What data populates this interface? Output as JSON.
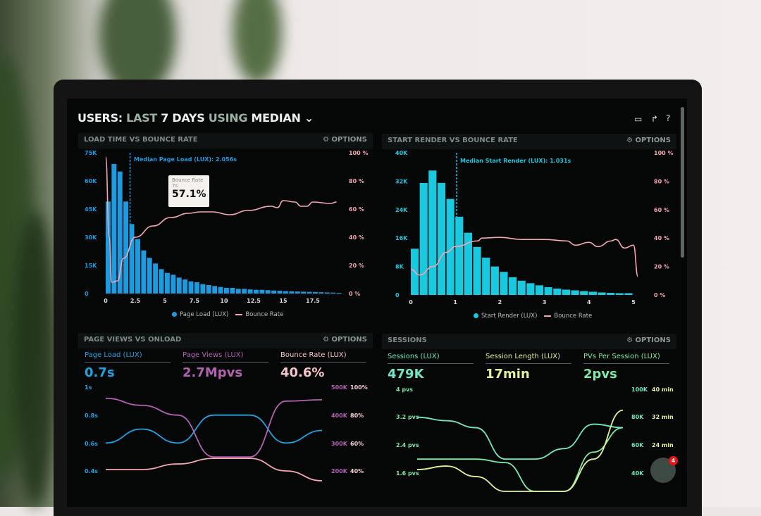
{
  "header": {
    "users": "USERS:",
    "last": "LAST",
    "days": "7 DAYS",
    "using": "USING",
    "median": "MEDIAN",
    "chevron": "chevron-down-icon",
    "icons": [
      "monitor-icon",
      "share-icon",
      "help-icon"
    ]
  },
  "panels": [
    {
      "title": "LOAD TIME VS BOUNCE RATE",
      "options": "OPTIONS"
    },
    {
      "title": "START RENDER VS BOUNCE RATE",
      "options": "OPTIONS"
    },
    {
      "title": "PAGE VIEWS VS ONLOAD",
      "options": "OPTIONS"
    },
    {
      "title": "SESSIONS",
      "options": "OPTIONS"
    }
  ],
  "tooltip": {
    "label": "Bounce Rate",
    "x": "7s",
    "value": "57.1%"
  },
  "metrics1": [
    {
      "label": "Page Load (LUX)",
      "value": "0.7s",
      "color": "#1fa3e0"
    },
    {
      "label": "Page Views (LUX)",
      "value": "2.7Mpvs",
      "color": "#b262b0"
    },
    {
      "label": "Bounce Rate (LUX)",
      "value": "40.6%",
      "color": "#f6c6cc"
    }
  ],
  "metrics2": [
    {
      "label": "Sessions (LUX)",
      "value": "479K",
      "color": "#72e6c6"
    },
    {
      "label": "Session Length (LUX)",
      "value": "17min",
      "color": "#e4ef9a"
    },
    {
      "label": "PVs Per Session (LUX)",
      "value": "2pvs",
      "color": "#7ee8a6"
    }
  ],
  "chat": {
    "badge": "4"
  },
  "chart_data": [
    {
      "type": "bar",
      "title": "LOAD TIME VS BOUNCE RATE",
      "annotation": "Median Page Load (LUX): 2.056s",
      "median": 2.056,
      "xticks": [
        "0",
        "2.5",
        "5",
        "7.5",
        "10",
        "12.5",
        "15",
        "17.5"
      ],
      "yticks_left": [
        "0",
        "15K",
        "30K",
        "45K",
        "60K",
        "75K"
      ],
      "yticks_right": [
        "0 %",
        "20 %",
        "40 %",
        "60 %",
        "80 %",
        "100 %"
      ],
      "xlim": [
        0,
        20
      ],
      "ylim": [
        0,
        75000
      ],
      "y2lim": [
        0,
        100
      ],
      "bar_width": 0.5,
      "legend": [
        "Page Load (LUX)",
        "Bounce Rate"
      ],
      "colors": {
        "bar": "#1c9be0",
        "line": "#f2a7b3"
      },
      "bars": [
        49000,
        69000,
        65000,
        49000,
        37000,
        29000,
        23000,
        19000,
        16000,
        13000,
        11000,
        10000,
        8500,
        7500,
        6500,
        6000,
        5000,
        4500,
        4000,
        3500,
        3000,
        3000,
        2500,
        2500,
        2200,
        2000,
        2000,
        1800,
        1600,
        1500,
        1300,
        1200,
        1100,
        1000,
        900,
        800,
        700,
        600,
        500,
        400
      ],
      "line": [
        [
          0,
          97
        ],
        [
          0.3,
          40
        ],
        [
          0.5,
          8
        ],
        [
          1,
          9
        ],
        [
          1.5,
          25
        ],
        [
          2.5,
          40
        ],
        [
          4,
          48
        ],
        [
          5.5,
          54
        ],
        [
          7,
          57
        ],
        [
          8,
          58
        ],
        [
          9,
          58
        ],
        [
          10.5,
          56
        ],
        [
          12,
          59
        ],
        [
          14,
          62
        ],
        [
          14.5,
          61
        ],
        [
          15,
          66
        ],
        [
          16,
          65
        ],
        [
          16.5,
          62
        ],
        [
          17,
          62
        ],
        [
          17.5,
          65
        ],
        [
          19,
          64
        ],
        [
          19.5,
          65
        ]
      ]
    },
    {
      "type": "bar",
      "title": "START RENDER VS BOUNCE RATE",
      "annotation": "Median Start Render (LUX): 1.031s",
      "median": 1.031,
      "xticks": [
        "0",
        "1",
        "2",
        "3",
        "4",
        "5"
      ],
      "yticks_left": [
        "0",
        "8K",
        "16K",
        "24K",
        "32K",
        "40K"
      ],
      "yticks_right": [
        "0 %",
        "20 %",
        "40 %",
        "60 %",
        "80 %",
        "100 %"
      ],
      "xlim": [
        0,
        5.3
      ],
      "ylim": [
        0,
        40000
      ],
      "y2lim": [
        0,
        100
      ],
      "bar_width": 0.2,
      "legend": [
        "Start Render (LUX)",
        "Bounce Rate"
      ],
      "colors": {
        "bar": "#19c9e0",
        "line": "#f2a7b3"
      },
      "bars": [
        13000,
        31500,
        35000,
        31500,
        27000,
        22000,
        17500,
        13500,
        10500,
        8000,
        6500,
        5000,
        4000,
        3300,
        2700,
        2200,
        1800,
        1500,
        1300,
        1100,
        900,
        700,
        600,
        500,
        500
      ],
      "line": [
        [
          0,
          18
        ],
        [
          0.2,
          14
        ],
        [
          0.5,
          20
        ],
        [
          0.8,
          30
        ],
        [
          1,
          34
        ],
        [
          1.5,
          38
        ],
        [
          1.6,
          40
        ],
        [
          2,
          40.5
        ],
        [
          2.5,
          39
        ],
        [
          3,
          39
        ],
        [
          3.5,
          38
        ],
        [
          3.7,
          35
        ],
        [
          4,
          37
        ],
        [
          4.2,
          34
        ],
        [
          4.5,
          38
        ],
        [
          4.6,
          39
        ],
        [
          4.8,
          33
        ],
        [
          5,
          35
        ],
        [
          5.1,
          13
        ]
      ]
    },
    {
      "type": "line",
      "title": "PAGE VIEWS VS ONLOAD",
      "yticks_left": [
        "0.4s",
        "0.6s",
        "0.8s",
        "1s"
      ],
      "yticks_right_1": [
        "200K",
        "300K",
        "400K",
        "500K"
      ],
      "yticks_right_2": [
        "40%",
        "60%",
        "80%",
        "100%"
      ],
      "series": [
        {
          "color": "#1fa3e0",
          "values": [
            0.6,
            0.7,
            0.6,
            0.8,
            0.8,
            0.6,
            0.69
          ]
        },
        {
          "color": "#b262b0",
          "values": [
            0.92,
            0.87,
            0.8,
            0.5,
            0.5,
            0.9,
            0.91
          ]
        },
        {
          "color": "#f2a7b3",
          "values": [
            0.41,
            0.41,
            0.45,
            0.49,
            0.49,
            0.4,
            0.33
          ]
        }
      ]
    },
    {
      "type": "line",
      "title": "SESSIONS",
      "yticks_left": [
        "1.6 pvs",
        "2.4 pvs",
        "3.2 pvs",
        "4 pvs"
      ],
      "yticks_right_1": [
        "40K",
        "60K",
        "80K",
        "100K"
      ],
      "yticks_right_2": [
        "",
        "24 min",
        "32 min",
        "40 min"
      ],
      "series": [
        {
          "color": "#72e6c6",
          "values": [
            3.2,
            3.1,
            2.9,
            2.0,
            2.0,
            2.3,
            3.0,
            2.9
          ]
        },
        {
          "color": "#7ee8a6",
          "values": [
            2.0,
            2.0,
            2.0,
            1.9,
            1.0,
            1.0,
            2.2,
            2.9
          ]
        },
        {
          "color": "#e4ef9a",
          "values": [
            1.7,
            1.8,
            1.5,
            1.0,
            1.0,
            1.0,
            2.0,
            3.4
          ]
        }
      ]
    }
  ]
}
